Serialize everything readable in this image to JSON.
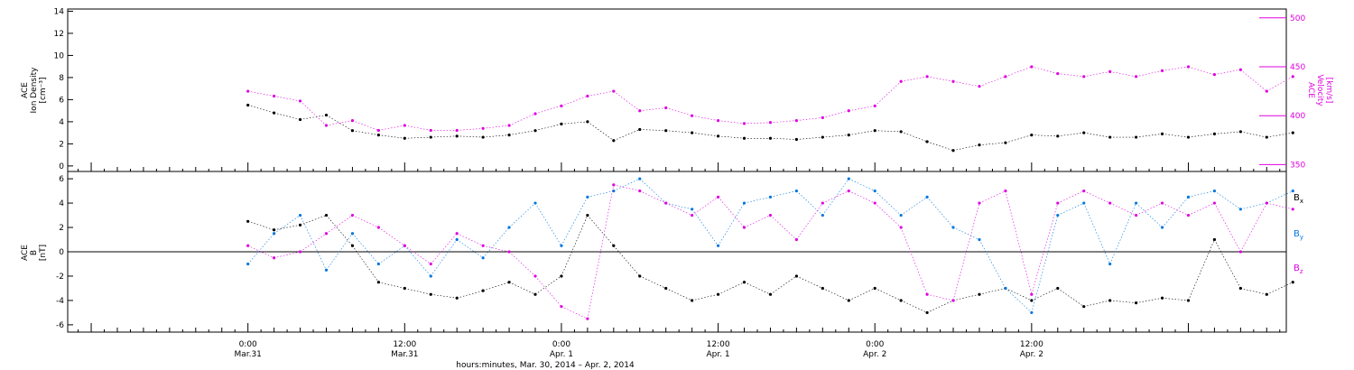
{
  "chart_data": [
    {
      "type": "scatter",
      "panel": "ion-density-velocity",
      "ylabel_left": [
        "ACE",
        "Ion Density",
        "[cm⁻³]"
      ],
      "ylabel_right": [
        "ACE",
        "Velocity",
        "[km/s]"
      ],
      "ylim_left": [
        -0.5,
        14.2
      ],
      "yticks_left": [
        0,
        2,
        4,
        6,
        8,
        10,
        12,
        14
      ],
      "ylim_right": [
        343,
        509
      ],
      "yticks_right": [
        350,
        400,
        450,
        500
      ],
      "right_axis_color": "#e000e0",
      "series": [
        {
          "axis": "left",
          "color": "#000000",
          "x": [
            0,
            2,
            4,
            6,
            8,
            10,
            12,
            14,
            16,
            18,
            20,
            22,
            24,
            26,
            28,
            30,
            32,
            34,
            36,
            38,
            40,
            42,
            44,
            46,
            48,
            50,
            52,
            54,
            56,
            58,
            60,
            62,
            64,
            66,
            68,
            70,
            72,
            74,
            76,
            78,
            80
          ],
          "y": [
            5.5,
            4.8,
            4.2,
            4.6,
            3.2,
            2.8,
            2.5,
            2.6,
            2.7,
            2.6,
            2.8,
            3.2,
            3.8,
            4.0,
            2.3,
            3.3,
            3.2,
            3.0,
            2.7,
            2.5,
            2.5,
            2.4,
            2.6,
            2.8,
            3.2,
            3.1,
            2.2,
            1.4,
            1.9,
            2.1,
            2.8,
            2.7,
            3.0,
            2.6,
            2.6,
            2.9,
            2.6,
            2.9,
            3.1,
            2.6,
            3.0
          ]
        },
        {
          "axis": "right",
          "color": "#e000e0",
          "x": [
            0,
            2,
            4,
            6,
            8,
            10,
            12,
            14,
            16,
            18,
            20,
            22,
            24,
            26,
            28,
            30,
            32,
            34,
            36,
            38,
            40,
            42,
            44,
            46,
            48,
            50,
            52,
            54,
            56,
            58,
            60,
            62,
            64,
            66,
            68,
            70,
            72,
            74,
            76,
            78,
            80
          ],
          "y": [
            425,
            420,
            415,
            390,
            395,
            385,
            390,
            385,
            385,
            387,
            390,
            402,
            410,
            420,
            425,
            405,
            408,
            400,
            395,
            392,
            393,
            395,
            398,
            405,
            410,
            435,
            440,
            435,
            430,
            440,
            450,
            443,
            440,
            445,
            440,
            446,
            450,
            442,
            447,
            425,
            440
          ]
        }
      ]
    },
    {
      "type": "scatter",
      "panel": "magnetic-field",
      "ylabel_left": [
        "ACE",
        "B",
        "[nT]"
      ],
      "ylim": [
        -6.6,
        6.6
      ],
      "yticks": [
        -6,
        -4,
        -2,
        0,
        2,
        4,
        6
      ],
      "zero_line": true,
      "legend_placement": "right",
      "legend": [
        "Bx",
        "By",
        "Bz"
      ],
      "series": [
        {
          "name": "Bx",
          "color": "#000000",
          "x": [
            0,
            2,
            4,
            6,
            8,
            10,
            12,
            14,
            16,
            18,
            20,
            22,
            24,
            26,
            28,
            30,
            32,
            34,
            36,
            38,
            40,
            42,
            44,
            46,
            48,
            50,
            52,
            54,
            56,
            58,
            60,
            62,
            64,
            66,
            68,
            70,
            72,
            74,
            76,
            78,
            80
          ],
          "y": [
            2.5,
            1.8,
            2.2,
            3.0,
            0.5,
            -2.5,
            -3.0,
            -3.5,
            -3.8,
            -3.2,
            -2.5,
            -3.5,
            -2.0,
            3.0,
            0.5,
            -2.0,
            -3.0,
            -4.0,
            -3.5,
            -2.5,
            -3.5,
            -2.0,
            -3.0,
            -4.0,
            -3.0,
            -4.0,
            -5.0,
            -4.0,
            -3.5,
            -3.0,
            -4.0,
            -3.0,
            -4.5,
            -4.0,
            -4.2,
            -3.8,
            -4.0,
            1.0,
            -3.0,
            -3.5,
            -2.5
          ]
        },
        {
          "name": "By",
          "color": "#0077dd",
          "x": [
            0,
            2,
            4,
            6,
            8,
            10,
            12,
            14,
            16,
            18,
            20,
            22,
            24,
            26,
            28,
            30,
            32,
            34,
            36,
            38,
            40,
            42,
            44,
            46,
            48,
            50,
            52,
            54,
            56,
            58,
            60,
            62,
            64,
            66,
            68,
            70,
            72,
            74,
            76,
            78,
            80
          ],
          "y": [
            -1.0,
            1.5,
            3.0,
            -1.5,
            1.5,
            -1.0,
            0.5,
            -2.0,
            1.0,
            -0.5,
            2.0,
            4.0,
            0.5,
            4.5,
            5.0,
            6.0,
            4.0,
            3.5,
            0.5,
            4.0,
            4.5,
            5.0,
            3.0,
            6.0,
            5.0,
            3.0,
            4.5,
            2.0,
            1.0,
            -3.0,
            -5.0,
            3.0,
            4.0,
            -1.0,
            4.0,
            2.0,
            4.5,
            5.0,
            3.5,
            4.0,
            5.0
          ]
        },
        {
          "name": "Bz",
          "color": "#e000e0",
          "x": [
            0,
            2,
            4,
            6,
            8,
            10,
            12,
            14,
            16,
            18,
            20,
            22,
            24,
            26,
            28,
            30,
            32,
            34,
            36,
            38,
            40,
            42,
            44,
            46,
            48,
            50,
            52,
            54,
            56,
            58,
            60,
            62,
            64,
            66,
            68,
            70,
            72,
            74,
            76,
            78,
            80
          ],
          "y": [
            0.5,
            -0.5,
            0.0,
            1.5,
            3.0,
            2.0,
            0.5,
            -1.0,
            1.5,
            0.5,
            0.0,
            -2.0,
            -4.5,
            -5.5,
            5.5,
            5.0,
            4.0,
            3.0,
            4.5,
            2.0,
            3.0,
            1.0,
            4.0,
            5.0,
            4.0,
            2.0,
            -3.5,
            -4.0,
            4.0,
            5.0,
            -3.5,
            4.0,
            5.0,
            4.0,
            3.0,
            4.0,
            3.0,
            4.0,
            0.0,
            4.0,
            3.5
          ]
        }
      ]
    }
  ],
  "legend_labels": {
    "bx_main": "B",
    "bx_sub": "x",
    "by_main": "B",
    "by_sub": "y",
    "bz_main": "B",
    "bz_sub": "z"
  },
  "x_axis": {
    "xlim_hours": [
      -13.8,
      79.5
    ],
    "major_ticks": [
      {
        "hours": 0,
        "time": "0:00",
        "date": "Mar.31"
      },
      {
        "hours": 12,
        "time": "12:00",
        "date": "Mar.31"
      },
      {
        "hours": 24,
        "time": "0:00",
        "date": "Apr. 1"
      },
      {
        "hours": 36,
        "time": "12:00",
        "date": "Apr. 1"
      },
      {
        "hours": 48,
        "time": "0:00",
        "date": "Apr. 2"
      },
      {
        "hours": 60,
        "time": "12:00",
        "date": "Apr. 2"
      }
    ],
    "xlabel": "hours:minutes, Mar. 30, 2014 – Apr.  2, 2014"
  }
}
